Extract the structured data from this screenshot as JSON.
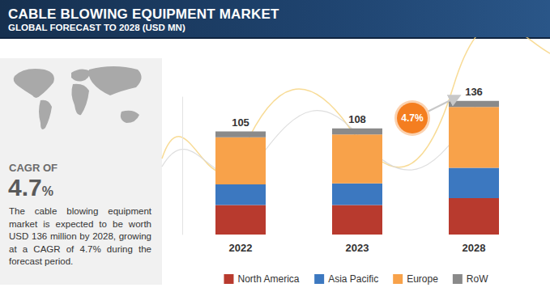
{
  "header": {
    "title": "CABLE BLOWING EQUIPMENT MARKET",
    "subtitle": "GLOBAL FORECAST TO 2028 (USD MN)"
  },
  "sidebar": {
    "label": "CAGR OF",
    "cagr": {
      "value": 4.7,
      "label": "4.7%"
    },
    "text": "The cable blowing equipment market is expected to be worth USD 136 million by 2028, growing at a CAGR of 4.7% during the forecast period."
  },
  "chart_data": {
    "type": "bar",
    "stacked": true,
    "categories": [
      "2022",
      "2023",
      "2028"
    ],
    "series": [
      {
        "name": "North America",
        "color": "#b83a2e",
        "values": [
          30,
          30,
          37
        ]
      },
      {
        "name": "Asia Pacific",
        "color": "#3c78c0",
        "values": [
          21,
          22,
          31
        ]
      },
      {
        "name": "Europe",
        "color": "#f8a24a",
        "values": [
          48,
          50,
          62
        ]
      },
      {
        "name": "RoW",
        "color": "#8a8a8a",
        "values": [
          6,
          6,
          6
        ]
      }
    ],
    "totals": [
      105,
      108,
      136
    ],
    "growth": {
      "value": 4.7,
      "label": "4.7%"
    },
    "ylim": [
      0,
      140
    ],
    "tick_labels": "x",
    "legend": "bottom",
    "grid": false
  }
}
